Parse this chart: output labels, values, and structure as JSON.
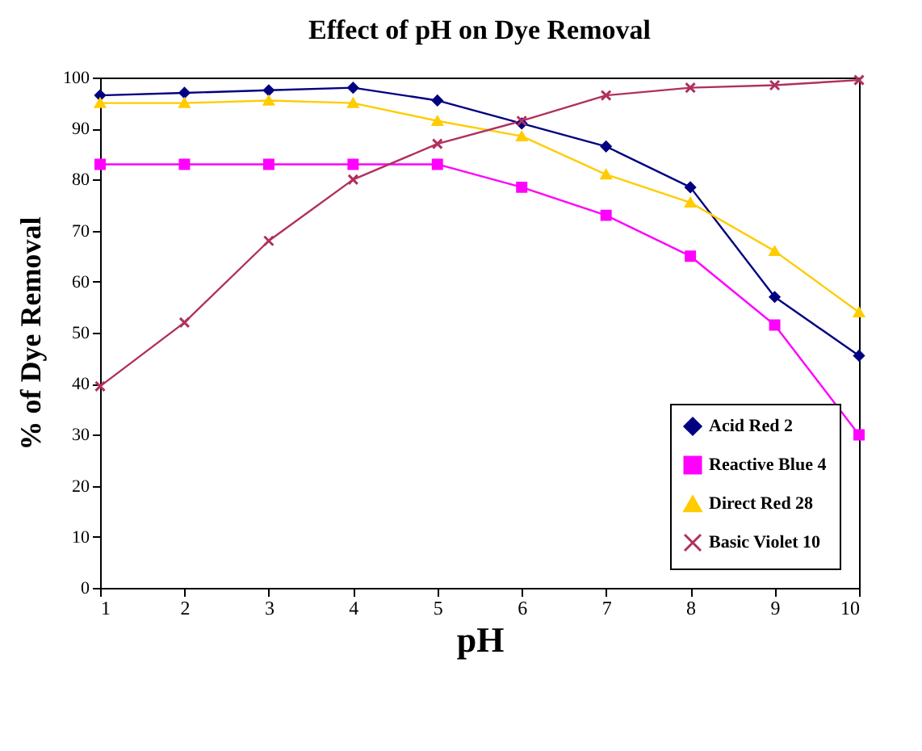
{
  "chart_data": {
    "type": "line",
    "title": "Effect of pH on Dye Removal",
    "xlabel": "pH",
    "ylabel": "% of Dye Removal",
    "x": [
      1,
      2,
      3,
      4,
      5,
      6,
      7,
      8,
      9,
      10
    ],
    "series": [
      {
        "name": "Acid Red 2",
        "color": "#000080",
        "marker": "diamond",
        "values": [
          96.5,
          97,
          97.5,
          98,
          95.5,
          91,
          86.5,
          78.5,
          57,
          45.5
        ]
      },
      {
        "name": "Reactive Blue 4",
        "color": "#ff00ff",
        "marker": "square",
        "values": [
          83,
          83,
          83,
          83,
          83,
          78.5,
          73,
          65,
          51.5,
          30
        ]
      },
      {
        "name": "Direct Red 28",
        "color": "#ffcc00",
        "marker": "triangle",
        "values": [
          95,
          95,
          95.5,
          95,
          91.5,
          88.5,
          81,
          75.5,
          66,
          54
        ]
      },
      {
        "name": "Basic Violet 10",
        "color": "#b03060",
        "marker": "cross",
        "values": [
          39.5,
          52,
          68,
          80,
          87,
          91.5,
          96.5,
          98,
          98.5,
          99.5
        ]
      }
    ],
    "xlim": [
      1,
      10
    ],
    "ylim": [
      0,
      100
    ],
    "xticks": [
      1,
      2,
      3,
      4,
      5,
      6,
      7,
      8,
      9,
      10
    ],
    "yticks": [
      0,
      10,
      20,
      30,
      40,
      50,
      60,
      70,
      80,
      90,
      100
    ],
    "grid": false,
    "legend": "bottom right"
  }
}
